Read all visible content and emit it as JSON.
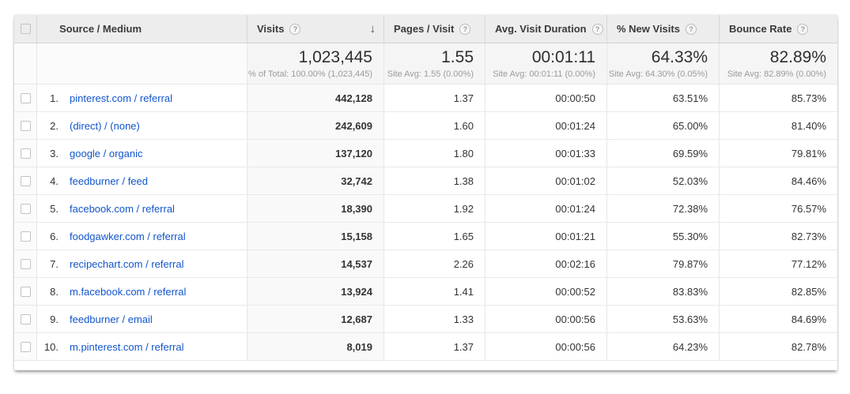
{
  "colors": {
    "link": "#1155cc",
    "header_bg": "#ededed",
    "summary_metric_bg": "#f5f5f5",
    "sorted_column_bg": "#f9f9f9"
  },
  "icons": {
    "help": "?",
    "sort_desc": "↓"
  },
  "table": {
    "header": {
      "source_medium": "Source / Medium",
      "visits": "Visits",
      "pages_per_visit": "Pages / Visit",
      "avg_visit_duration": "Avg. Visit Duration",
      "pct_new_visits": "% New Visits",
      "bounce_rate": "Bounce Rate"
    },
    "summary": {
      "visits_total": "1,023,445",
      "visits_sub": "% of Total: 100.00% (1,023,445)",
      "pages_avg": "1.55",
      "pages_sub": "Site Avg: 1.55 (0.00%)",
      "duration_avg": "00:01:11",
      "duration_sub": "Site Avg: 00:01:11 (0.00%)",
      "new_visits_avg": "64.33%",
      "new_visits_sub": "Site Avg: 64.30% (0.05%)",
      "bounce_avg": "82.89%",
      "bounce_sub": "Site Avg: 82.89% (0.00%)"
    },
    "rows": [
      {
        "index": "1.",
        "source": "pinterest.com / referral",
        "visits": "442,128",
        "pages": "1.37",
        "duration": "00:00:50",
        "new_visits": "63.51%",
        "bounce": "85.73%"
      },
      {
        "index": "2.",
        "source": "(direct) / (none)",
        "visits": "242,609",
        "pages": "1.60",
        "duration": "00:01:24",
        "new_visits": "65.00%",
        "bounce": "81.40%"
      },
      {
        "index": "3.",
        "source": "google / organic",
        "visits": "137,120",
        "pages": "1.80",
        "duration": "00:01:33",
        "new_visits": "69.59%",
        "bounce": "79.81%"
      },
      {
        "index": "4.",
        "source": "feedburner / feed",
        "visits": "32,742",
        "pages": "1.38",
        "duration": "00:01:02",
        "new_visits": "52.03%",
        "bounce": "84.46%"
      },
      {
        "index": "5.",
        "source": "facebook.com / referral",
        "visits": "18,390",
        "pages": "1.92",
        "duration": "00:01:24",
        "new_visits": "72.38%",
        "bounce": "76.57%"
      },
      {
        "index": "6.",
        "source": "foodgawker.com / referral",
        "visits": "15,158",
        "pages": "1.65",
        "duration": "00:01:21",
        "new_visits": "55.30%",
        "bounce": "82.73%"
      },
      {
        "index": "7.",
        "source": "recipechart.com / referral",
        "visits": "14,537",
        "pages": "2.26",
        "duration": "00:02:16",
        "new_visits": "79.87%",
        "bounce": "77.12%"
      },
      {
        "index": "8.",
        "source": "m.facebook.com / referral",
        "visits": "13,924",
        "pages": "1.41",
        "duration": "00:00:52",
        "new_visits": "83.83%",
        "bounce": "82.85%"
      },
      {
        "index": "9.",
        "source": "feedburner / email",
        "visits": "12,687",
        "pages": "1.33",
        "duration": "00:00:56",
        "new_visits": "53.63%",
        "bounce": "84.69%"
      },
      {
        "index": "10.",
        "source": "m.pinterest.com / referral",
        "visits": "8,019",
        "pages": "1.37",
        "duration": "00:00:56",
        "new_visits": "64.23%",
        "bounce": "82.78%"
      }
    ]
  }
}
